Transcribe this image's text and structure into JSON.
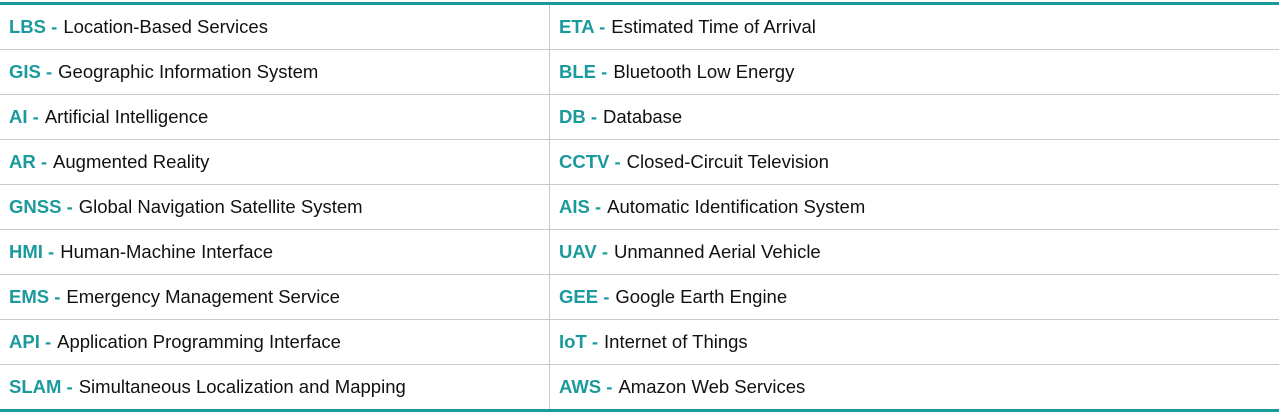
{
  "table": {
    "rows": [
      [
        {
          "abbr": "LBS -",
          "expansion": "Location-Based Services"
        },
        {
          "abbr": "ETA -",
          "expansion": "Estimated Time of Arrival"
        }
      ],
      [
        {
          "abbr": "GIS -",
          "expansion": "Geographic Information System"
        },
        {
          "abbr": "BLE -",
          "expansion": "Bluetooth Low Energy"
        }
      ],
      [
        {
          "abbr": "AI -",
          "expansion": "Artificial Intelligence"
        },
        {
          "abbr": "DB -",
          "expansion": "Database"
        }
      ],
      [
        {
          "abbr": "AR -",
          "expansion": "Augmented Reality"
        },
        {
          "abbr": "CCTV -",
          "expansion": "Closed-Circuit Television"
        }
      ],
      [
        {
          "abbr": "GNSS -",
          "expansion": "Global Navigation Satellite System"
        },
        {
          "abbr": "AIS -",
          "expansion": "Automatic Identification System"
        }
      ],
      [
        {
          "abbr": "HMI -",
          "expansion": "Human-Machine Interface"
        },
        {
          "abbr": "UAV -",
          "expansion": "Unmanned Aerial Vehicle"
        }
      ],
      [
        {
          "abbr": "EMS -",
          "expansion": "Emergency Management Service"
        },
        {
          "abbr": "GEE -",
          "expansion": "Google Earth Engine"
        }
      ],
      [
        {
          "abbr": "API -",
          "expansion": "Application Programming Interface"
        },
        {
          "abbr": "IoT -",
          "expansion": "Internet of Things"
        }
      ],
      [
        {
          "abbr": "SLAM -",
          "expansion": "Simultaneous Localization and Mapping"
        },
        {
          "abbr": "AWS -",
          "expansion": "Amazon Web Services"
        }
      ]
    ]
  }
}
